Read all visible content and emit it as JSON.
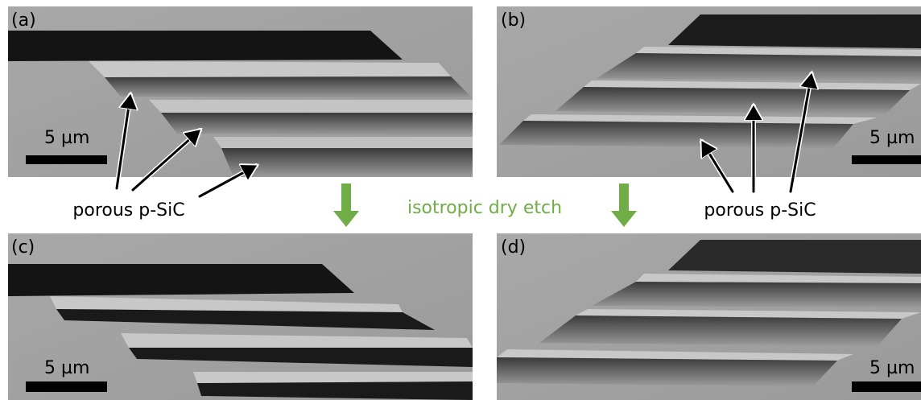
{
  "panels": [
    {
      "label": "(a)",
      "scale_bar": "5 µm"
    },
    {
      "label": "(b)",
      "scale_bar": "5 µm"
    },
    {
      "label": "(c)",
      "scale_bar": "5 µm"
    },
    {
      "label": "(d)",
      "scale_bar": "5 µm"
    }
  ],
  "annotations": {
    "left_label": "porous p-SiC",
    "center_label": "isotropic dry etch",
    "right_label": "porous p-SiC"
  }
}
